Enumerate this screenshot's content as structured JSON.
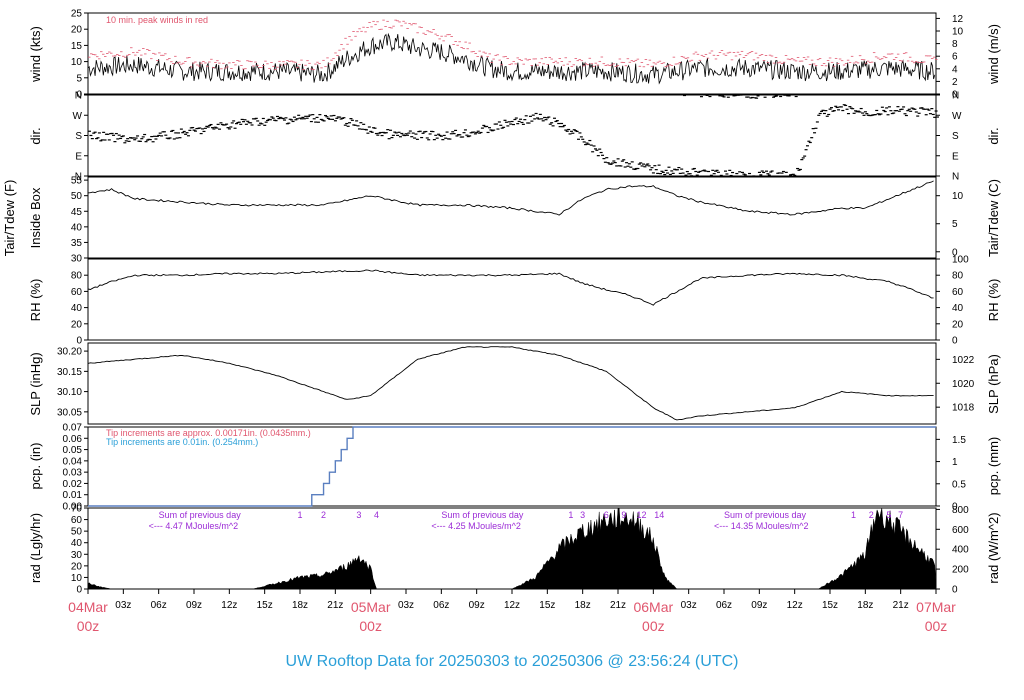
{
  "title": "UW Rooftop Data for 20250303  to  20250306 @ 23:56:24  (UTC)",
  "colors": {
    "title": "#2a9fd8",
    "date": "#e0566e",
    "pink": "#e0566e",
    "blue": "#2a9fd8",
    "purple": "#9b2bd6",
    "line": "#000000"
  },
  "time_axis": {
    "ticks": [
      "04Mar",
      "03z",
      "06z",
      "09z",
      "12z",
      "15z",
      "18z",
      "21z",
      "05Mar",
      "03z",
      "06z",
      "09z",
      "12z",
      "15z",
      "18z",
      "21z",
      "06Mar",
      "03z",
      "06z",
      "09z",
      "12z",
      "15z",
      "18z",
      "21z",
      "07Mar"
    ],
    "dates": [
      {
        "label": "04Mar",
        "sub": "00z",
        "hour": 0
      },
      {
        "label": "05Mar",
        "sub": "00z",
        "hour": 24
      },
      {
        "label": "06Mar",
        "sub": "00z",
        "hour": 48
      },
      {
        "label": "07Mar",
        "sub": "00z",
        "hour": 72
      }
    ]
  },
  "panels": {
    "wind": {
      "ylabel_left": "wind (kts)",
      "ylabel_right": "wind (m/s)",
      "left_ticks": [
        "0",
        "5",
        "10",
        "15",
        "20",
        "25"
      ],
      "right_ticks": [
        "0",
        "2",
        "4",
        "6",
        "8",
        "10",
        "12"
      ],
      "note": "10 min. peak winds in red",
      "ylim": [
        0,
        25
      ]
    },
    "dir": {
      "ylabel_left": "dir.",
      "ylabel_right": "dir.",
      "ticks": [
        "N",
        "W",
        "S",
        "E",
        "N"
      ]
    },
    "temp": {
      "ylabel_left_1": "Tair/Tdew (F)",
      "ylabel_left_2": "Inside Box",
      "ylabel_right": "Tair/Tdew (C)",
      "left_ticks": [
        "30",
        "35",
        "40",
        "45",
        "50",
        "55"
      ],
      "right_ticks": [
        "0",
        "5",
        "10"
      ],
      "ylim": [
        30,
        56
      ]
    },
    "rh": {
      "ylabel_left": "RH (%)",
      "ylabel_right": "RH (%)",
      "left_ticks": [
        "0",
        "20",
        "40",
        "60",
        "80"
      ],
      "right_ticks": [
        "0",
        "20",
        "40",
        "60",
        "80",
        "100"
      ],
      "ylim": [
        0,
        100
      ]
    },
    "slp": {
      "ylabel_left": "SLP (inHg)",
      "ylabel_right": "SLP (hPa)",
      "left_ticks": [
        "30.05",
        "30.10",
        "30.15",
        "30.20"
      ],
      "right_ticks": [
        "1018",
        "1020",
        "1022"
      ],
      "ylim": [
        30.02,
        30.22
      ]
    },
    "pcp": {
      "ylabel_left": "pcp. (in)",
      "ylabel_right": "pcp. (mm)",
      "left_ticks": [
        "0.00",
        "0.01",
        "0.02",
        "0.03",
        "0.04",
        "0.05",
        "0.06",
        "0.07"
      ],
      "right_ticks": [
        "0",
        "0.5",
        "1",
        "1.5"
      ],
      "note_1": "Tip increments are approx. 0.00171in. (0.0435mm.)",
      "note_2": "Tip increments are 0.01in. (0.254mm.)",
      "ylim": [
        0,
        0.07
      ]
    },
    "rad": {
      "ylabel_left": "rad (Lgly/hr)",
      "ylabel_right": "rad (W/m^2)",
      "left_ticks": [
        "0",
        "10",
        "20",
        "30",
        "40",
        "50",
        "60",
        "70"
      ],
      "right_ticks": [
        "0",
        "200",
        "400",
        "600",
        "800"
      ],
      "ylim": [
        0,
        70
      ],
      "sums": [
        {
          "line1": "Sum of previous day",
          "line2": "<--- 4.47 MJoules/m^2",
          "hour": 6
        },
        {
          "line1": "Sum of previous day",
          "line2": "<--- 4.25 MJoules/m^2",
          "hour": 30
        },
        {
          "line1": "Sum of previous day",
          "line2": "<--- 14.35 MJoules/m^2",
          "hour": 54
        }
      ],
      "hour_marks": [
        {
          "text": "1",
          "hour": 18
        },
        {
          "text": "2",
          "hour": 20
        },
        {
          "text": "3",
          "hour": 23
        },
        {
          "text": "4",
          "hour": 24.5
        },
        {
          "text": "1",
          "hour": 41
        },
        {
          "text": "3",
          "hour": 42
        },
        {
          "text": "6",
          "hour": 44
        },
        {
          "text": "9",
          "hour": 45.5
        },
        {
          "text": "12",
          "hour": 47
        },
        {
          "text": "14",
          "hour": 48.5
        },
        {
          "text": "1",
          "hour": 65
        },
        {
          "text": "2",
          "hour": 66.5
        },
        {
          "text": "5",
          "hour": 68
        },
        {
          "text": "7",
          "hour": 69
        }
      ]
    }
  },
  "chart_data": {
    "type": "line",
    "title": "UW Rooftop Data for 20250303  to  20250306 @ 23:56:24  (UTC)",
    "x_unit": "hours since 04Mar 00z",
    "xlim": [
      0,
      72
    ],
    "series": [
      {
        "name": "wind (kts)",
        "x": [
          0,
          4,
          8,
          12,
          16,
          20,
          22,
          24,
          26,
          28,
          30,
          32,
          34,
          36,
          40,
          44,
          48,
          52,
          56,
          60,
          64,
          68,
          72
        ],
        "values": [
          8,
          9,
          7,
          7,
          7,
          6,
          11,
          15,
          16,
          14,
          13,
          11,
          8,
          7,
          7,
          7,
          6,
          8,
          8,
          7,
          7,
          8,
          7
        ]
      },
      {
        "name": "10 min. peak winds in red",
        "x": [
          0,
          4,
          8,
          12,
          16,
          20,
          22,
          24,
          26,
          28,
          30,
          32,
          34,
          36,
          40,
          44,
          48,
          52,
          56,
          60,
          64,
          68,
          72
        ],
        "values": [
          12,
          13,
          10,
          9,
          9,
          9,
          17,
          21,
          22,
          20,
          18,
          15,
          11,
          10,
          10,
          10,
          9,
          12,
          12,
          10,
          10,
          12,
          10
        ]
      },
      {
        "name": "dir.",
        "x": [
          0,
          4,
          8,
          12,
          16,
          20,
          22,
          24,
          26,
          28,
          30,
          32,
          34,
          36,
          38,
          40,
          42,
          44,
          48,
          52,
          56,
          60,
          62,
          64,
          66,
          68,
          72
        ],
        "values": [
          180,
          200,
          170,
          130,
          110,
          100,
          120,
          160,
          180,
          180,
          180,
          170,
          150,
          120,
          100,
          130,
          200,
          290,
          330,
          350,
          355,
          360,
          90,
          60,
          80,
          70,
          80
        ]
      },
      {
        "name": "Tair",
        "x": [
          0,
          2,
          4,
          8,
          12,
          16,
          20,
          24,
          28,
          32,
          36,
          40,
          42,
          44,
          46,
          48,
          50,
          52,
          56,
          60,
          64,
          66,
          68,
          70,
          72
        ],
        "values": [
          51,
          52,
          49,
          48,
          47,
          47,
          47,
          50,
          47,
          47,
          46,
          44,
          49,
          52,
          53,
          53,
          50,
          48,
          45,
          44,
          46,
          46,
          49,
          52,
          55
        ]
      },
      {
        "name": "RH (%)",
        "x": [
          0,
          2,
          4,
          8,
          12,
          16,
          20,
          24,
          28,
          32,
          36,
          40,
          42,
          44,
          46,
          48,
          50,
          52,
          56,
          60,
          64,
          68,
          70,
          72
        ],
        "values": [
          62,
          72,
          80,
          80,
          82,
          82,
          84,
          86,
          80,
          80,
          80,
          82,
          70,
          62,
          55,
          44,
          60,
          76,
          80,
          82,
          80,
          72,
          62,
          50
        ]
      },
      {
        "name": "SLP (inHg)",
        "x": [
          0,
          4,
          8,
          12,
          16,
          20,
          22,
          24,
          28,
          32,
          36,
          40,
          44,
          48,
          50,
          52,
          56,
          60,
          64,
          68,
          72
        ],
        "values": [
          30.17,
          30.18,
          30.19,
          30.17,
          30.14,
          30.1,
          30.08,
          30.09,
          30.18,
          30.21,
          30.21,
          30.19,
          30.15,
          30.06,
          30.03,
          30.04,
          30.05,
          30.06,
          30.1,
          30.09,
          30.09
        ]
      },
      {
        "name": "pcp. (in)",
        "x": [
          0,
          18.5,
          19,
          20,
          20.5,
          21,
          21.5,
          22,
          22.5,
          23,
          72
        ],
        "values": [
          0,
          0,
          0.01,
          0.02,
          0.03,
          0.04,
          0.05,
          0.06,
          0.07,
          0.07,
          0.07
        ]
      },
      {
        "name": "rad (Lgly/hr)",
        "x": [
          0,
          1,
          2,
          14,
          16,
          18,
          20,
          22,
          23,
          24,
          24.5,
          36,
          38,
          40,
          42,
          44,
          46,
          47,
          48,
          49,
          50,
          62,
          64,
          66,
          67,
          68,
          70,
          72
        ],
        "values": [
          5,
          2,
          0,
          0,
          5,
          10,
          12,
          20,
          28,
          18,
          0,
          0,
          10,
          35,
          50,
          60,
          62,
          55,
          42,
          10,
          0,
          0,
          12,
          30,
          68,
          60,
          40,
          20
        ]
      }
    ]
  }
}
